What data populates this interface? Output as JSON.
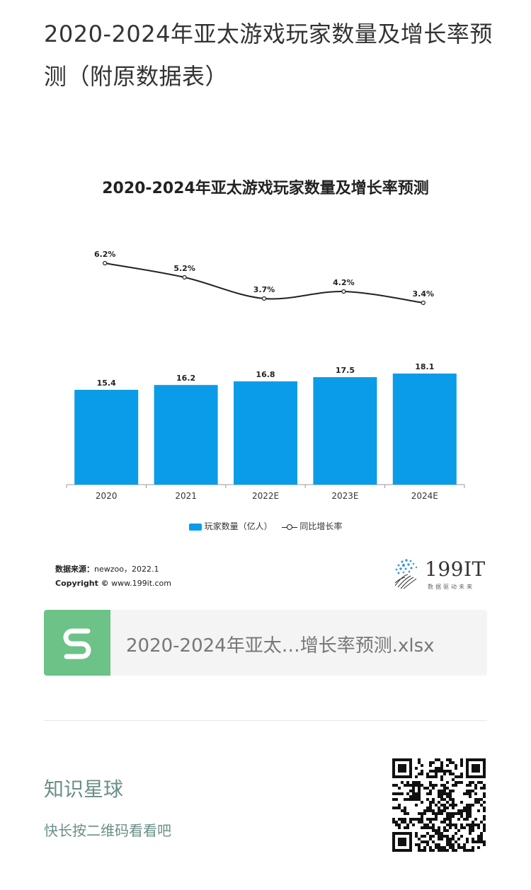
{
  "article": {
    "title": "2020-2024年亚太游戏玩家数量及增长率预测（附原数据表）"
  },
  "chart_data": {
    "type": "bar",
    "title": "2020-2024年亚太游戏玩家数量及增长率预测",
    "categories": [
      "2020",
      "2021",
      "2022E",
      "2023E",
      "2024E"
    ],
    "series": [
      {
        "name": "玩家数量（亿人）",
        "type": "bar",
        "values": [
          15.4,
          16.2,
          16.8,
          17.5,
          18.1
        ],
        "labels": [
          "15.4",
          "16.2",
          "16.8",
          "17.5",
          "18.1"
        ],
        "color": "#0a9ce8"
      },
      {
        "name": "同比增长率",
        "type": "line",
        "values": [
          6.2,
          5.2,
          3.7,
          4.2,
          3.4
        ],
        "labels": [
          "6.2%",
          "5.2%",
          "3.7%",
          "4.2%",
          "3.4%"
        ],
        "color": "#222222"
      }
    ],
    "legend_position": "bottom",
    "grid": false
  },
  "chart_footer": {
    "source_label": "数据来源：",
    "source_value": "newzoo，2022.1",
    "copyright_label": "Copyright ©",
    "copyright_value": "www.199it.com"
  },
  "brand": {
    "name": "199IT",
    "slogan": "数据驱动未来"
  },
  "attachment": {
    "file_name": "2020-2024年亚太…增长率预测.xlsx",
    "icon": "spreadsheet-s-icon",
    "icon_color": "#6cc287"
  },
  "promo": {
    "title": "知识星球",
    "subtitle": "快长按二维码看看吧",
    "qr_icon": "qr-code-icon"
  }
}
